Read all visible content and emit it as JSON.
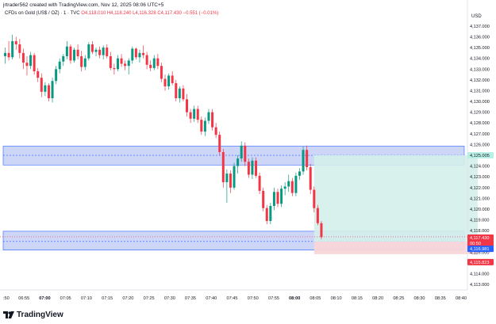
{
  "header": {
    "creator_line": "jrtrader562 created with TradingView.com, Nov 12, 2025 08:06 UTC+5"
  },
  "legend": {
    "symbol": "CFDs on Gold (US$ / OZ) · 1 · TVC",
    "ohlc": "O4,118.010 H4,118.240 L4,116.328 C4,117.430 −0.551 (−0.01%)"
  },
  "price_axis": {
    "currency": "USD",
    "ticks": [
      "4,137.000",
      "4,136.000",
      "4,135.000",
      "4,134.000",
      "4,133.000",
      "4,132.000",
      "4,131.000",
      "4,130.000",
      "4,129.000",
      "4,128.000",
      "4,127.000",
      "4,126.000",
      "4,125.000",
      "4,124.000",
      "4,123.000",
      "4,122.000",
      "4,121.000",
      "4,120.000",
      "4,119.000",
      "4,118.000",
      "4,117.000",
      "4,116.000",
      "4,115.000",
      "4,114.000",
      "4,113.000"
    ],
    "badges": [
      {
        "text": "4,125.005",
        "color": "#b9f0e6",
        "text_color": "#131722"
      },
      {
        "text": "4,117.430",
        "color": "#f23645",
        "text_color": "#ffffff"
      },
      {
        "text": "00:50",
        "color": "#f23645",
        "text_color": "#ffffff"
      },
      {
        "text": "4,116.981",
        "color": "#2962ff",
        "text_color": "#ffffff"
      },
      {
        "text": "4,115.823",
        "color": "#f23645",
        "text_color": "#ffffff"
      }
    ]
  },
  "time_axis": {
    "ticks": [
      ":50",
      "06:55",
      "07:00",
      "07:05",
      "07:10",
      "07:15",
      "07:20",
      "07:25",
      "07:30",
      "07:35",
      "07:40",
      "07:45",
      "07:50",
      "07:55",
      "08:00",
      "08:05",
      "08:10",
      "08:15",
      "08:20",
      "08:25",
      "08:30",
      "08:35",
      "08:40"
    ],
    "bold": [
      "07:00",
      "08:00"
    ]
  },
  "logo": {
    "text": "TradingView"
  },
  "colors": {
    "up": "#089981",
    "down": "#f23645",
    "zone_fill": "#c5cff7",
    "zone_border": "#2962ff",
    "profit_fill": "#d4f0ea",
    "loss_fill": "#f9d6d9"
  },
  "chart_data": {
    "type": "candlestick",
    "ylim": [
      4112.5,
      4137.8
    ],
    "x_start": "06:50",
    "interval_minutes": 1,
    "candles": [
      [
        4134.2,
        4135.0,
        4133.5,
        4134.5
      ],
      [
        4134.5,
        4135.6,
        4133.8,
        4134.1
      ],
      [
        4134.1,
        4136.2,
        4133.9,
        4135.6
      ],
      [
        4135.6,
        4136.0,
        4134.8,
        4135.3
      ],
      [
        4135.3,
        4135.8,
        4134.0,
        4134.5
      ],
      [
        4134.5,
        4134.9,
        4133.0,
        4133.6
      ],
      [
        4133.6,
        4134.2,
        4132.4,
        4133.3
      ],
      [
        4133.3,
        4134.6,
        4133.0,
        4134.3
      ],
      [
        4134.3,
        4134.5,
        4132.5,
        4132.8
      ],
      [
        4132.8,
        4133.1,
        4131.8,
        4132.2
      ],
      [
        4132.2,
        4132.6,
        4130.4,
        4130.9
      ],
      [
        4130.9,
        4131.8,
        4130.5,
        4131.5
      ],
      [
        4131.5,
        4131.7,
        4130.0,
        4130.3
      ],
      [
        4130.3,
        4132.2,
        4129.9,
        4131.9
      ],
      [
        4131.9,
        4133.3,
        4131.6,
        4133.0
      ],
      [
        4133.0,
        4134.0,
        4132.6,
        4133.7
      ],
      [
        4133.7,
        4134.4,
        4133.3,
        4134.2
      ],
      [
        4134.2,
        4135.6,
        4133.9,
        4135.1
      ],
      [
        4135.1,
        4135.3,
        4133.5,
        4133.8
      ],
      [
        4133.8,
        4135.0,
        4133.6,
        4134.8
      ],
      [
        4134.8,
        4135.3,
        4133.9,
        4134.2
      ],
      [
        4134.2,
        4134.7,
        4132.8,
        4133.2
      ],
      [
        4133.2,
        4134.3,
        4132.9,
        4134.0
      ],
      [
        4134.0,
        4135.5,
        4133.8,
        4135.3
      ],
      [
        4135.3,
        4135.6,
        4134.4,
        4134.6
      ],
      [
        4134.6,
        4135.0,
        4134.2,
        4134.8
      ],
      [
        4134.8,
        4135.1,
        4134.0,
        4134.3
      ],
      [
        4134.3,
        4135.2,
        4133.9,
        4135.0
      ],
      [
        4135.0,
        4135.3,
        4134.0,
        4134.2
      ],
      [
        4134.2,
        4134.6,
        4132.9,
        4133.1
      ],
      [
        4133.1,
        4133.5,
        4132.5,
        4133.0
      ],
      [
        4133.0,
        4134.3,
        4132.8,
        4134.0
      ],
      [
        4134.0,
        4134.4,
        4133.2,
        4133.5
      ],
      [
        4133.5,
        4133.8,
        4132.9,
        4133.3
      ],
      [
        4133.3,
        4134.0,
        4132.5,
        4133.8
      ],
      [
        4133.8,
        4135.1,
        4133.5,
        4134.9
      ],
      [
        4134.9,
        4135.0,
        4133.9,
        4134.1
      ],
      [
        4134.1,
        4134.8,
        4133.6,
        4134.5
      ],
      [
        4134.5,
        4135.2,
        4134.0,
        4134.3
      ],
      [
        4134.3,
        4134.6,
        4133.0,
        4133.4
      ],
      [
        4133.4,
        4133.8,
        4132.8,
        4133.1
      ],
      [
        4133.1,
        4134.3,
        4132.9,
        4134.0
      ],
      [
        4134.0,
        4134.4,
        4133.0,
        4133.3
      ],
      [
        4133.3,
        4133.6,
        4131.8,
        4132.1
      ],
      [
        4132.1,
        4132.5,
        4131.0,
        4131.4
      ],
      [
        4131.4,
        4132.6,
        4131.1,
        4132.4
      ],
      [
        4132.4,
        4132.8,
        4131.5,
        4131.7
      ],
      [
        4131.7,
        4132.0,
        4130.0,
        4130.3
      ],
      [
        4130.3,
        4131.4,
        4129.9,
        4131.2
      ],
      [
        4131.2,
        4131.5,
        4130.0,
        4130.2
      ],
      [
        4130.2,
        4130.7,
        4128.6,
        4129.0
      ],
      [
        4129.0,
        4129.3,
        4128.0,
        4128.4
      ],
      [
        4128.4,
        4129.6,
        4128.1,
        4129.3
      ],
      [
        4129.3,
        4129.6,
        4128.0,
        4128.3
      ],
      [
        4128.3,
        4128.6,
        4126.9,
        4127.2
      ],
      [
        4127.2,
        4128.5,
        4126.8,
        4128.2
      ],
      [
        4128.2,
        4129.3,
        4127.9,
        4129.0
      ],
      [
        4129.0,
        4129.3,
        4127.3,
        4127.6
      ],
      [
        4127.6,
        4128.0,
        4126.6,
        4126.9
      ],
      [
        4126.9,
        4127.2,
        4125.0,
        4125.3
      ],
      [
        4125.3,
        4125.6,
        4122.0,
        4122.5
      ],
      [
        4122.5,
        4123.7,
        4120.6,
        4123.3
      ],
      [
        4123.3,
        4123.6,
        4121.5,
        4122.0
      ],
      [
        4122.0,
        4124.3,
        4121.8,
        4124.0
      ],
      [
        4124.0,
        4125.0,
        4123.3,
        4124.7
      ],
      [
        4124.7,
        4126.3,
        4124.4,
        4125.9
      ],
      [
        4125.9,
        4126.2,
        4124.0,
        4124.4
      ],
      [
        4124.4,
        4124.7,
        4122.9,
        4123.2
      ],
      [
        4123.2,
        4124.8,
        4122.8,
        4124.5
      ],
      [
        4124.5,
        4124.8,
        4122.9,
        4123.1
      ],
      [
        4123.1,
        4123.4,
        4121.4,
        4121.7
      ],
      [
        4121.7,
        4122.0,
        4119.8,
        4120.1
      ],
      [
        4120.1,
        4120.4,
        4118.6,
        4118.9
      ],
      [
        4118.9,
        4120.6,
        4118.6,
        4120.3
      ],
      [
        4120.3,
        4122.0,
        4119.9,
        4121.6
      ],
      [
        4121.6,
        4121.9,
        4120.2,
        4120.5
      ],
      [
        4120.5,
        4122.2,
        4120.2,
        4121.9
      ],
      [
        4121.9,
        4122.5,
        4121.3,
        4122.1
      ],
      [
        4122.1,
        4123.2,
        4121.6,
        4122.6
      ],
      [
        4122.6,
        4122.9,
        4121.2,
        4121.5
      ],
      [
        4121.5,
        4123.4,
        4121.2,
        4123.1
      ],
      [
        4123.1,
        4123.8,
        4122.7,
        4123.5
      ],
      [
        4123.5,
        4125.8,
        4123.2,
        4125.5
      ],
      [
        4125.5,
        4125.9,
        4123.6,
        4123.9
      ],
      [
        4123.9,
        4124.2,
        4121.4,
        4121.8
      ],
      [
        4121.8,
        4122.1,
        4119.7,
        4120.1
      ],
      [
        4120.1,
        4120.4,
        4118.5,
        4118.7
      ],
      [
        4118.7,
        4118.9,
        4117.2,
        4117.4
      ]
    ],
    "zones": [
      {
        "from": 4124.1,
        "to": 4125.85,
        "mid": 4125.0
      },
      {
        "from": 4116.2,
        "to": 4117.95,
        "mid": 4117.0
      }
    ],
    "position": {
      "entry": 4116.981,
      "target": 4125.005,
      "stop": 4115.823,
      "start_index": 85,
      "end_index": 130
    },
    "last_price": 4117.43
  }
}
